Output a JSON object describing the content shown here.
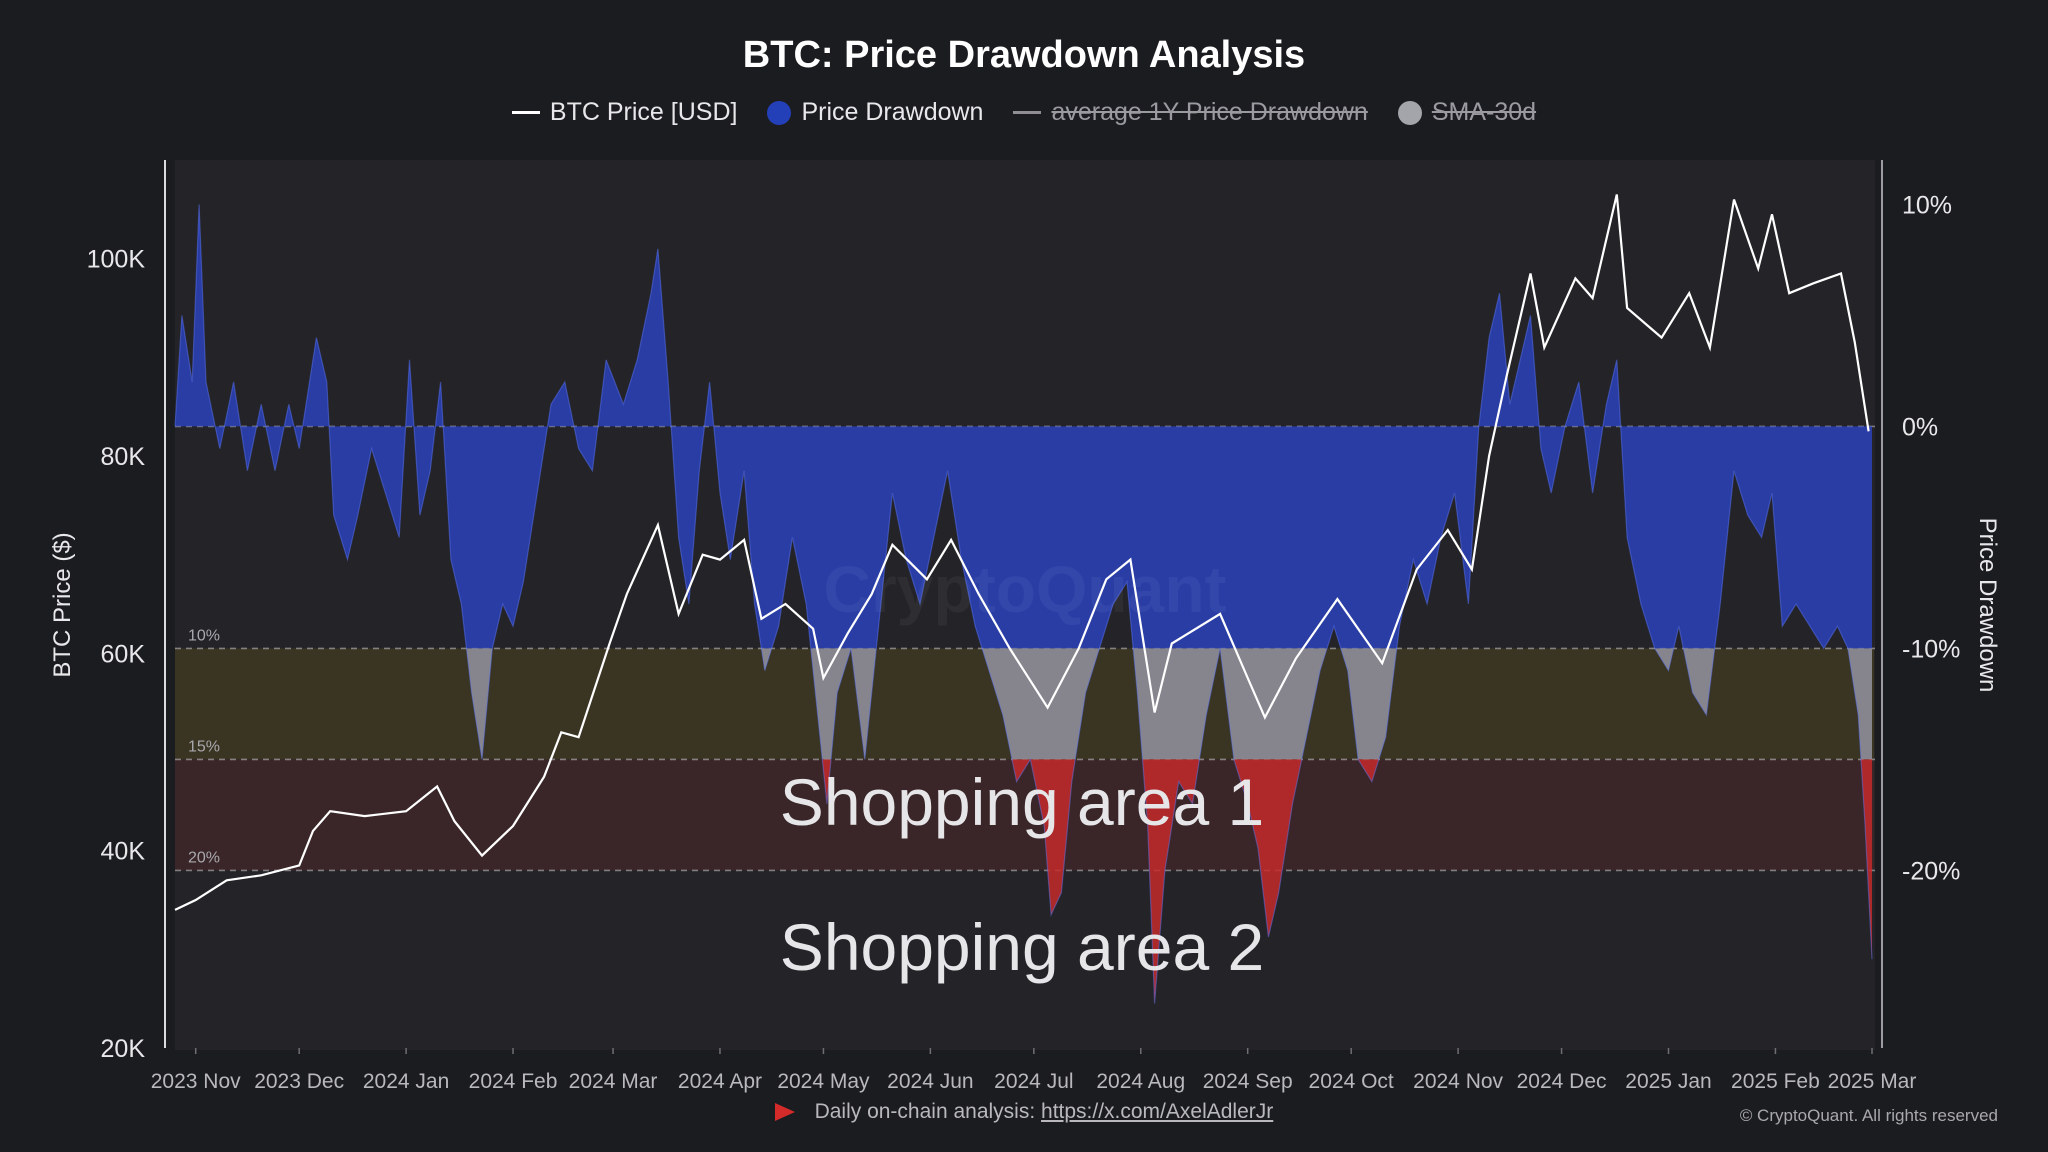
{
  "header": {
    "title": "BTC: Price Drawdown Analysis"
  },
  "legend": [
    {
      "label": "BTC Price [USD]",
      "kind": "line",
      "color": "#ffffff",
      "active": true
    },
    {
      "label": "Price Drawdown",
      "kind": "dot",
      "color": "#2440b8",
      "active": true
    },
    {
      "label": "average 1Y Price Drawdown",
      "kind": "line",
      "color": "#8e8e94",
      "active": false
    },
    {
      "label": "SMA-30d",
      "kind": "dot",
      "color": "#a4a4ab",
      "active": false
    }
  ],
  "watermark": "CryptoQuant",
  "annotations": {
    "zone1": "Shopping area 1",
    "zone2": "Shopping area 2",
    "level_labels": [
      "10%",
      "15%",
      "20%"
    ]
  },
  "footer": {
    "text": "Daily on-chain analysis:",
    "link": "https://x.com/AxelAdlerJr",
    "copyright": "© CryptoQuant. All rights reserved"
  },
  "colors": {
    "drawdown_blue": "#2a44c4",
    "drawdown_grey": "#8f8e9a",
    "drawdown_red": "#c42a2a",
    "zone_yellow": "#3a3422",
    "zone_red": "#3a2628"
  },
  "chart_data": {
    "type": "area",
    "x_labels": [
      "2023 Nov",
      "2023 Dec",
      "2024 Jan",
      "2024 Feb",
      "2024 Mar",
      "2024 Apr",
      "2024 May",
      "2024 Jun",
      "2024 Jul",
      "2024 Aug",
      "2024 Sep",
      "2024 Oct",
      "2024 Nov",
      "2024 Dec",
      "2025 Jan",
      "2025 Feb",
      "2025 Mar"
    ],
    "x_range": [
      "2023-10-26",
      "2025-03-01"
    ],
    "y_left": {
      "label": "BTC Price ($)",
      "range": [
        20000,
        110000
      ],
      "ticks": [
        20000,
        40000,
        60000,
        80000,
        100000
      ],
      "tick_labels": [
        "20K",
        "40K",
        "60K",
        "80K",
        "100K"
      ]
    },
    "y_right": {
      "label": "Price Drawdown",
      "range": [
        -28,
        12
      ],
      "ticks": [
        10,
        0,
        -10,
        -20
      ],
      "tick_labels": [
        "10%",
        "0%",
        "-10%",
        "-20%"
      ]
    },
    "reference_lines": [
      0,
      -10,
      -15,
      -20
    ],
    "zones": [
      {
        "from": -10,
        "to": -15,
        "color": "yellow"
      },
      {
        "from": -15,
        "to": -20,
        "color": "red"
      }
    ],
    "series": [
      {
        "name": "BTC Price [USD]",
        "axis": "left",
        "points": [
          [
            "2023-10-26",
            34000
          ],
          [
            "2023-11-01",
            35000
          ],
          [
            "2023-11-10",
            37000
          ],
          [
            "2023-11-20",
            37500
          ],
          [
            "2023-12-01",
            38500
          ],
          [
            "2023-12-05",
            42000
          ],
          [
            "2023-12-10",
            44000
          ],
          [
            "2023-12-20",
            43500
          ],
          [
            "2024-01-01",
            44000
          ],
          [
            "2024-01-10",
            46500
          ],
          [
            "2024-01-15",
            43000
          ],
          [
            "2024-01-23",
            39500
          ],
          [
            "2024-02-01",
            42500
          ],
          [
            "2024-02-10",
            47500
          ],
          [
            "2024-02-15",
            52000
          ],
          [
            "2024-02-20",
            51500
          ],
          [
            "2024-02-29",
            61000
          ],
          [
            "2024-03-05",
            66000
          ],
          [
            "2024-03-14",
            73000
          ],
          [
            "2024-03-20",
            64000
          ],
          [
            "2024-03-27",
            70000
          ],
          [
            "2024-04-01",
            69500
          ],
          [
            "2024-04-08",
            71500
          ],
          [
            "2024-04-13",
            63500
          ],
          [
            "2024-04-20",
            65000
          ],
          [
            "2024-04-28",
            62500
          ],
          [
            "2024-05-01",
            57500
          ],
          [
            "2024-05-08",
            62000
          ],
          [
            "2024-05-15",
            66000
          ],
          [
            "2024-05-21",
            71000
          ],
          [
            "2024-05-31",
            67500
          ],
          [
            "2024-06-07",
            71500
          ],
          [
            "2024-06-15",
            66000
          ],
          [
            "2024-06-24",
            60500
          ],
          [
            "2024-07-05",
            54500
          ],
          [
            "2024-07-14",
            60500
          ],
          [
            "2024-07-22",
            67500
          ],
          [
            "2024-07-29",
            69500
          ],
          [
            "2024-08-05",
            54000
          ],
          [
            "2024-08-10",
            61000
          ],
          [
            "2024-08-24",
            64000
          ],
          [
            "2024-09-01",
            57500
          ],
          [
            "2024-09-06",
            53500
          ],
          [
            "2024-09-15",
            59500
          ],
          [
            "2024-09-27",
            65500
          ],
          [
            "2024-10-10",
            59000
          ],
          [
            "2024-10-20",
            68500
          ],
          [
            "2024-10-29",
            72500
          ],
          [
            "2024-11-05",
            68500
          ],
          [
            "2024-11-10",
            80000
          ],
          [
            "2024-11-15",
            88000
          ],
          [
            "2024-11-22",
            98500
          ],
          [
            "2024-11-26",
            91000
          ],
          [
            "2024-12-05",
            98000
          ],
          [
            "2024-12-10",
            96000
          ],
          [
            "2024-12-17",
            106500
          ],
          [
            "2024-12-20",
            95000
          ],
          [
            "2024-12-30",
            92000
          ],
          [
            "2025-01-07",
            96500
          ],
          [
            "2025-01-13",
            91000
          ],
          [
            "2025-01-20",
            106000
          ],
          [
            "2025-01-27",
            99000
          ],
          [
            "2025-01-31",
            104500
          ],
          [
            "2025-02-05",
            96500
          ],
          [
            "2025-02-12",
            97500
          ],
          [
            "2025-02-20",
            98500
          ],
          [
            "2025-02-24",
            91500
          ],
          [
            "2025-02-28",
            82500
          ]
        ]
      },
      {
        "name": "Price Drawdown",
        "axis": "right",
        "points": [
          [
            "2023-10-26",
            0
          ],
          [
            "2023-10-28",
            5
          ],
          [
            "2023-10-31",
            2
          ],
          [
            "2023-11-02",
            10
          ],
          [
            "2023-11-04",
            2
          ],
          [
            "2023-11-08",
            -1
          ],
          [
            "2023-11-12",
            2
          ],
          [
            "2023-11-16",
            -2
          ],
          [
            "2023-11-20",
            1
          ],
          [
            "2023-11-24",
            -2
          ],
          [
            "2023-11-28",
            1
          ],
          [
            "2023-12-01",
            -1
          ],
          [
            "2023-12-06",
            4
          ],
          [
            "2023-12-09",
            2
          ],
          [
            "2023-12-11",
            -4
          ],
          [
            "2023-12-15",
            -6
          ],
          [
            "2023-12-18",
            -4
          ],
          [
            "2023-12-22",
            -1
          ],
          [
            "2023-12-26",
            -3
          ],
          [
            "2023-12-30",
            -5
          ],
          [
            "2024-01-02",
            3
          ],
          [
            "2024-01-05",
            -4
          ],
          [
            "2024-01-08",
            -2
          ],
          [
            "2024-01-11",
            2
          ],
          [
            "2024-01-14",
            -6
          ],
          [
            "2024-01-17",
            -8
          ],
          [
            "2024-01-20",
            -12
          ],
          [
            "2024-01-23",
            -15
          ],
          [
            "2024-01-26",
            -10
          ],
          [
            "2024-01-29",
            -8
          ],
          [
            "2024-02-01",
            -9
          ],
          [
            "2024-02-04",
            -7
          ],
          [
            "2024-02-08",
            -3
          ],
          [
            "2024-02-12",
            1
          ],
          [
            "2024-02-16",
            2
          ],
          [
            "2024-02-20",
            -1
          ],
          [
            "2024-02-24",
            -2
          ],
          [
            "2024-02-28",
            3
          ],
          [
            "2024-03-04",
            1
          ],
          [
            "2024-03-08",
            3
          ],
          [
            "2024-03-12",
            6
          ],
          [
            "2024-03-14",
            8
          ],
          [
            "2024-03-17",
            2
          ],
          [
            "2024-03-20",
            -5
          ],
          [
            "2024-03-23",
            -8
          ],
          [
            "2024-03-26",
            -2
          ],
          [
            "2024-03-29",
            2
          ],
          [
            "2024-04-01",
            -3
          ],
          [
            "2024-04-04",
            -6
          ],
          [
            "2024-04-08",
            -2
          ],
          [
            "2024-04-11",
            -8
          ],
          [
            "2024-04-14",
            -11
          ],
          [
            "2024-04-18",
            -9
          ],
          [
            "2024-04-22",
            -5
          ],
          [
            "2024-04-26",
            -8
          ],
          [
            "2024-04-30",
            -14
          ],
          [
            "2024-05-02",
            -17
          ],
          [
            "2024-05-05",
            -12
          ],
          [
            "2024-05-09",
            -10
          ],
          [
            "2024-05-13",
            -15
          ],
          [
            "2024-05-17",
            -9
          ],
          [
            "2024-05-21",
            -3
          ],
          [
            "2024-05-25",
            -6
          ],
          [
            "2024-05-29",
            -8
          ],
          [
            "2024-06-02",
            -5
          ],
          [
            "2024-06-06",
            -2
          ],
          [
            "2024-06-10",
            -6
          ],
          [
            "2024-06-14",
            -9
          ],
          [
            "2024-06-18",
            -11
          ],
          [
            "2024-06-22",
            -13
          ],
          [
            "2024-06-26",
            -16
          ],
          [
            "2024-06-30",
            -15
          ],
          [
            "2024-07-04",
            -18
          ],
          [
            "2024-07-06",
            -22
          ],
          [
            "2024-07-09",
            -21
          ],
          [
            "2024-07-12",
            -16
          ],
          [
            "2024-07-16",
            -12
          ],
          [
            "2024-07-20",
            -10
          ],
          [
            "2024-07-24",
            -8
          ],
          [
            "2024-07-28",
            -7
          ],
          [
            "2024-07-31",
            -12
          ],
          [
            "2024-08-03",
            -18
          ],
          [
            "2024-08-05",
            -26
          ],
          [
            "2024-08-08",
            -20
          ],
          [
            "2024-08-12",
            -16
          ],
          [
            "2024-08-16",
            -17
          ],
          [
            "2024-08-20",
            -13
          ],
          [
            "2024-08-24",
            -10
          ],
          [
            "2024-08-28",
            -15
          ],
          [
            "2024-09-01",
            -17
          ],
          [
            "2024-09-04",
            -19
          ],
          [
            "2024-09-07",
            -23
          ],
          [
            "2024-09-10",
            -21
          ],
          [
            "2024-09-14",
            -17
          ],
          [
            "2024-09-18",
            -14
          ],
          [
            "2024-09-22",
            -11
          ],
          [
            "2024-09-26",
            -9
          ],
          [
            "2024-09-30",
            -11
          ],
          [
            "2024-10-03",
            -15
          ],
          [
            "2024-10-07",
            -16
          ],
          [
            "2024-10-11",
            -14
          ],
          [
            "2024-10-15",
            -9
          ],
          [
            "2024-10-19",
            -6
          ],
          [
            "2024-10-23",
            -8
          ],
          [
            "2024-10-27",
            -5
          ],
          [
            "2024-10-31",
            -3
          ],
          [
            "2024-11-04",
            -8
          ],
          [
            "2024-11-07",
            0
          ],
          [
            "2024-11-10",
            4
          ],
          [
            "2024-11-13",
            6
          ],
          [
            "2024-11-16",
            1
          ],
          [
            "2024-11-19",
            3
          ],
          [
            "2024-11-22",
            5
          ],
          [
            "2024-11-25",
            -1
          ],
          [
            "2024-11-28",
            -3
          ],
          [
            "2024-12-02",
            0
          ],
          [
            "2024-12-06",
            2
          ],
          [
            "2024-12-10",
            -3
          ],
          [
            "2024-12-14",
            1
          ],
          [
            "2024-12-17",
            3
          ],
          [
            "2024-12-20",
            -5
          ],
          [
            "2024-12-24",
            -8
          ],
          [
            "2024-12-28",
            -10
          ],
          [
            "2025-01-01",
            -11
          ],
          [
            "2025-01-04",
            -9
          ],
          [
            "2025-01-08",
            -12
          ],
          [
            "2025-01-12",
            -13
          ],
          [
            "2025-01-16",
            -8
          ],
          [
            "2025-01-20",
            -2
          ],
          [
            "2025-01-24",
            -4
          ],
          [
            "2025-01-28",
            -5
          ],
          [
            "2025-01-31",
            -3
          ],
          [
            "2025-02-03",
            -9
          ],
          [
            "2025-02-07",
            -8
          ],
          [
            "2025-02-11",
            -9
          ],
          [
            "2025-02-15",
            -10
          ],
          [
            "2025-02-19",
            -9
          ],
          [
            "2025-02-22",
            -10
          ],
          [
            "2025-02-25",
            -13
          ],
          [
            "2025-02-27",
            -18
          ],
          [
            "2025-03-01",
            -24
          ]
        ]
      }
    ]
  }
}
